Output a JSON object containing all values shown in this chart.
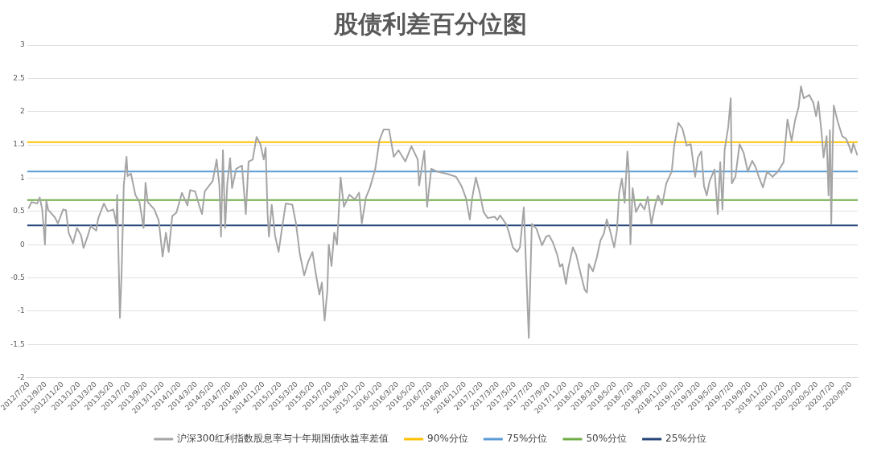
{
  "chart_data": {
    "type": "line",
    "title": "股债利差百分位图",
    "xlim": [
      "2012-07-14",
      "2020-10-15"
    ],
    "xticks": [
      {
        "value": "2012-07-20",
        "label": "2012/7/20"
      },
      {
        "value": "2012-09-20",
        "label": "2012/9/20"
      },
      {
        "value": "2012-11-20",
        "label": "2012/11/20"
      },
      {
        "value": "2013-01-20",
        "label": "2013/1/20"
      },
      {
        "value": "2013-03-20",
        "label": "2013/3/20"
      },
      {
        "value": "2013-05-20",
        "label": "2013/5/20"
      },
      {
        "value": "2013-07-20",
        "label": "2013/7/20"
      },
      {
        "value": "2013-09-20",
        "label": "2013/9/20"
      },
      {
        "value": "2013-11-20",
        "label": "2013/11/20"
      },
      {
        "value": "2014-01-20",
        "label": "2014/1/20"
      },
      {
        "value": "2014-03-20",
        "label": "2014/3/20"
      },
      {
        "value": "2014-05-20",
        "label": "2014/5/20"
      },
      {
        "value": "2014-07-20",
        "label": "2014/7/20"
      },
      {
        "value": "2014-09-20",
        "label": "2014/9/20"
      },
      {
        "value": "2014-11-20",
        "label": "2014/11/20"
      },
      {
        "value": "2015-01-20",
        "label": "2015/1/20"
      },
      {
        "value": "2015-03-20",
        "label": "2015/3/20"
      },
      {
        "value": "2015-05-20",
        "label": "2015/5/20"
      },
      {
        "value": "2015-07-20",
        "label": "2015/7/20"
      },
      {
        "value": "2015-09-20",
        "label": "2015/9/20"
      },
      {
        "value": "2015-11-20",
        "label": "2015/11/20"
      },
      {
        "value": "2016-01-20",
        "label": "2016/1/20"
      },
      {
        "value": "2016-03-20",
        "label": "2016/3/20"
      },
      {
        "value": "2016-05-20",
        "label": "2016/5/20"
      },
      {
        "value": "2016-07-20",
        "label": "2016/7/20"
      },
      {
        "value": "2016-09-20",
        "label": "2016/9/20"
      },
      {
        "value": "2016-11-20",
        "label": "2016/11/20"
      },
      {
        "value": "2017-01-20",
        "label": "2017/1/20"
      },
      {
        "value": "2017-03-20",
        "label": "2017/3/20"
      },
      {
        "value": "2017-05-20",
        "label": "2017/5/20"
      },
      {
        "value": "2017-07-20",
        "label": "2017/7/20"
      },
      {
        "value": "2017-09-20",
        "label": "2017/9/20"
      },
      {
        "value": "2017-11-20",
        "label": "2017/11/20"
      },
      {
        "value": "2018-01-20",
        "label": "2018/1/20"
      },
      {
        "value": "2018-03-20",
        "label": "2018/3/20"
      },
      {
        "value": "2018-05-20",
        "label": "2018/5/20"
      },
      {
        "value": "2018-07-20",
        "label": "2018/7/20"
      },
      {
        "value": "2018-09-20",
        "label": "2018/9/20"
      },
      {
        "value": "2018-11-20",
        "label": "2018/11/20"
      },
      {
        "value": "2019-01-20",
        "label": "2019/1/20"
      },
      {
        "value": "2019-03-20",
        "label": "2019/3/20"
      },
      {
        "value": "2019-05-20",
        "label": "2019/5/20"
      },
      {
        "value": "2019-07-20",
        "label": "2019/7/20"
      },
      {
        "value": "2019-09-20",
        "label": "2019/9/20"
      },
      {
        "value": "2019-11-20",
        "label": "2019/11/20"
      },
      {
        "value": "2020-01-20",
        "label": "2020/1/20"
      },
      {
        "value": "2020-03-20",
        "label": "2020/3/20"
      },
      {
        "value": "2020-05-20",
        "label": "2020/5/20"
      },
      {
        "value": "2020-07-20",
        "label": "2020/7/20"
      },
      {
        "value": "2020-09-20",
        "label": "2020/9/20"
      }
    ],
    "ylim": [
      -2,
      3
    ],
    "yticks": [
      -2,
      -1.5,
      -1,
      -0.5,
      0,
      0.5,
      1,
      1.5,
      2,
      2.5,
      3
    ],
    "grid": "y",
    "legend": "bottom",
    "marker": "none",
    "line_style": "solid",
    "series": [
      {
        "name": "沪深300红利指数股息率与十年期国债收益率差值",
        "color": "#a5a5a5",
        "x": [
          "2012-07-20",
          "2012-07-30",
          "2012-08-20",
          "2012-08-29",
          "2012-09-07",
          "2012-09-17",
          "2012-09-22",
          "2012-09-29",
          "2012-10-23",
          "2012-11-03",
          "2012-11-22",
          "2012-12-02",
          "2012-12-12",
          "2012-12-28",
          "2013-01-11",
          "2013-01-26",
          "2013-02-04",
          "2013-02-20",
          "2013-03-02",
          "2013-03-22",
          "2013-03-29",
          "2013-04-19",
          "2013-05-03",
          "2013-05-23",
          "2013-06-03",
          "2013-06-06",
          "2013-06-16",
          "2013-06-22",
          "2013-06-30",
          "2013-07-10",
          "2013-07-14",
          "2013-07-26",
          "2013-08-11",
          "2013-08-26",
          "2013-09-10",
          "2013-09-17",
          "2013-09-25",
          "2013-10-19",
          "2013-11-04",
          "2013-11-18",
          "2013-11-30",
          "2013-12-10",
          "2013-12-23",
          "2014-01-07",
          "2014-01-27",
          "2014-02-16",
          "2014-02-26",
          "2014-03-16",
          "2014-03-30",
          "2014-04-10",
          "2014-04-20",
          "2014-05-19",
          "2014-06-02",
          "2014-06-12",
          "2014-06-18",
          "2014-06-25",
          "2014-07-03",
          "2014-07-11",
          "2014-07-21",
          "2014-07-28",
          "2014-08-12",
          "2014-09-02",
          "2014-09-16",
          "2014-09-26",
          "2014-10-11",
          "2014-10-25",
          "2014-11-08",
          "2014-11-20",
          "2014-11-27",
          "2014-12-04",
          "2014-12-09",
          "2014-12-19",
          "2014-12-31",
          "2015-01-13",
          "2015-01-23",
          "2015-02-08",
          "2015-03-04",
          "2015-03-17",
          "2015-03-31",
          "2015-04-16",
          "2015-05-01",
          "2015-05-16",
          "2015-05-25",
          "2015-06-10",
          "2015-06-19",
          "2015-06-29",
          "2015-07-09",
          "2015-07-14",
          "2015-07-24",
          "2015-08-03",
          "2015-08-13",
          "2015-08-26",
          "2015-09-07",
          "2015-09-27",
          "2015-10-17",
          "2015-11-01",
          "2015-11-11",
          "2015-11-26",
          "2015-12-10",
          "2015-12-30",
          "2016-01-14",
          "2016-01-29",
          "2016-02-18",
          "2016-03-06",
          "2016-03-23",
          "2016-04-17",
          "2016-05-09",
          "2016-06-01",
          "2016-06-06",
          "2016-06-16",
          "2016-06-25",
          "2016-07-05",
          "2016-07-20",
          "2016-08-10",
          "2016-09-19",
          "2016-10-18",
          "2016-11-07",
          "2016-11-23",
          "2016-12-07",
          "2016-12-15",
          "2016-12-29",
          "2017-01-12",
          "2017-01-26",
          "2017-02-10",
          "2017-03-07",
          "2017-03-17",
          "2017-03-27",
          "2017-04-19",
          "2017-04-29",
          "2017-05-12",
          "2017-05-28",
          "2017-06-07",
          "2017-06-21",
          "2017-06-28",
          "2017-07-09",
          "2017-07-20",
          "2017-08-06",
          "2017-08-26",
          "2017-09-10",
          "2017-09-21",
          "2017-10-05",
          "2017-10-20",
          "2017-10-30",
          "2017-11-08",
          "2017-11-21",
          "2017-11-29",
          "2017-12-16",
          "2017-12-28",
          "2018-01-13",
          "2018-01-28",
          "2018-02-05",
          "2018-02-12",
          "2018-02-27",
          "2018-03-13",
          "2018-03-26",
          "2018-04-08",
          "2018-04-18",
          "2018-04-30",
          "2018-05-15",
          "2018-05-25",
          "2018-06-02",
          "2018-06-12",
          "2018-06-22",
          "2018-07-02",
          "2018-07-08",
          "2018-07-13",
          "2018-07-21",
          "2018-08-02",
          "2018-08-18",
          "2018-09-02",
          "2018-09-14",
          "2018-09-27",
          "2018-10-11",
          "2018-10-21",
          "2018-11-05",
          "2018-11-20",
          "2018-12-10",
          "2018-12-19",
          "2019-01-03",
          "2019-01-18",
          "2019-02-02",
          "2019-02-17",
          "2019-03-05",
          "2019-03-15",
          "2019-03-27",
          "2019-04-06",
          "2019-04-16",
          "2019-04-26",
          "2019-05-14",
          "2019-05-26",
          "2019-06-04",
          "2019-06-12",
          "2019-06-20",
          "2019-07-03",
          "2019-07-12",
          "2019-07-16",
          "2019-07-29",
          "2019-08-13",
          "2019-08-28",
          "2019-09-12",
          "2019-09-28",
          "2019-10-10",
          "2019-10-22",
          "2019-11-06",
          "2019-11-21",
          "2019-12-11",
          "2019-12-30",
          "2020-01-20",
          "2020-02-03",
          "2020-02-18",
          "2020-03-02",
          "2020-03-14",
          "2020-03-23",
          "2020-04-02",
          "2020-04-22",
          "2020-05-07",
          "2020-05-17",
          "2020-05-25",
          "2020-06-06",
          "2020-06-13",
          "2020-06-24",
          "2020-07-01",
          "2020-07-06",
          "2020-07-11",
          "2020-07-16",
          "2020-07-20",
          "2020-08-04",
          "2020-08-20",
          "2020-09-03",
          "2020-09-13",
          "2020-09-22",
          "2020-09-29",
          "2020-10-13"
        ],
        "values": [
          0.55,
          0.64,
          0.62,
          0.71,
          0.53,
          0.0,
          0.66,
          0.52,
          0.41,
          0.32,
          0.53,
          0.52,
          0.18,
          0.02,
          0.25,
          0.14,
          -0.05,
          0.14,
          0.28,
          0.21,
          0.39,
          0.62,
          0.5,
          0.53,
          0.32,
          0.75,
          -1.1,
          -0.46,
          0.89,
          1.32,
          1.03,
          1.07,
          0.75,
          0.64,
          0.25,
          0.93,
          0.64,
          0.53,
          0.36,
          -0.18,
          0.18,
          -0.11,
          0.43,
          0.48,
          0.78,
          0.59,
          0.82,
          0.8,
          0.6,
          0.46,
          0.8,
          0.96,
          1.28,
          0.89,
          0.12,
          1.42,
          0.25,
          0.93,
          1.3,
          0.85,
          1.14,
          1.19,
          0.46,
          1.25,
          1.28,
          1.62,
          1.51,
          1.28,
          1.46,
          0.46,
          0.12,
          0.6,
          0.14,
          -0.11,
          0.18,
          0.62,
          0.6,
          0.32,
          -0.14,
          -0.46,
          -0.25,
          -0.11,
          -0.36,
          -0.75,
          -0.57,
          -1.14,
          -0.68,
          0.0,
          -0.32,
          0.18,
          0.0,
          1.01,
          0.57,
          0.75,
          0.68,
          0.78,
          0.32,
          0.71,
          0.85,
          1.14,
          1.57,
          1.73,
          1.73,
          1.32,
          1.42,
          1.25,
          1.48,
          1.28,
          0.89,
          1.17,
          1.41,
          0.57,
          1.14,
          1.1,
          1.06,
          1.02,
          0.88,
          0.7,
          0.38,
          0.69,
          1.01,
          0.78,
          0.49,
          0.4,
          0.42,
          0.37,
          0.44,
          0.3,
          0.17,
          -0.04,
          -0.11,
          -0.04,
          0.56,
          -0.19,
          -1.4,
          0.31,
          0.24,
          -0.01,
          0.12,
          0.14,
          0.03,
          -0.15,
          -0.33,
          -0.29,
          -0.59,
          -0.36,
          -0.04,
          -0.15,
          -0.43,
          -0.68,
          -0.72,
          -0.29,
          -0.4,
          -0.19,
          0.06,
          0.17,
          0.38,
          0.21,
          -0.04,
          0.21,
          0.78,
          0.99,
          0.63,
          1.4,
          1.06,
          0.01,
          0.85,
          0.49,
          0.62,
          0.53,
          0.72,
          0.31,
          0.6,
          0.74,
          0.6,
          0.92,
          1.1,
          1.49,
          1.83,
          1.74,
          1.49,
          1.51,
          1.02,
          1.31,
          1.4,
          0.88,
          0.74,
          0.95,
          1.13,
          0.46,
          1.24,
          0.53,
          1.43,
          1.77,
          2.2,
          0.92,
          1.02,
          1.51,
          1.38,
          1.1,
          1.26,
          1.17,
          1.02,
          0.86,
          1.1,
          1.02,
          1.1,
          1.24,
          1.88,
          1.56,
          1.88,
          2.06,
          2.38,
          2.2,
          2.25,
          2.13,
          1.93,
          2.15,
          1.67,
          1.31,
          1.63,
          0.74,
          1.72,
          0.31,
          1.49,
          2.09,
          1.84,
          1.63,
          1.59,
          1.49,
          1.38,
          1.52,
          1.35
        ]
      }
    ],
    "ref_lines": [
      {
        "axis": "y",
        "value": 1.54,
        "label": "90%分位",
        "color": "#ffc000"
      },
      {
        "axis": "y",
        "value": 1.1,
        "label": "75%分位",
        "color": "#5b9bd5"
      },
      {
        "axis": "y",
        "value": 0.67,
        "label": "50%分位",
        "color": "#70ad47"
      },
      {
        "axis": "y",
        "value": 0.29,
        "label": "25%分位",
        "color": "#264478"
      }
    ]
  }
}
